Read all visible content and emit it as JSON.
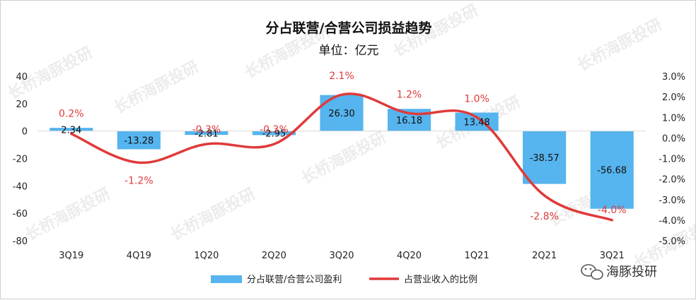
{
  "chart_data": {
    "type": "bar",
    "title": "分占联营/合营公司损益趋势",
    "subtitle": "单位：亿元",
    "categories": [
      "3Q19",
      "4Q19",
      "1Q20",
      "2Q20",
      "3Q20",
      "4Q20",
      "1Q21",
      "2Q21",
      "3Q21"
    ],
    "series": [
      {
        "name": "分占联营/合营公司盈利",
        "type": "bar",
        "axis": "left",
        "values": [
          2.34,
          -13.28,
          -2.81,
          -2.95,
          26.3,
          16.18,
          13.48,
          -38.57,
          -56.68
        ],
        "labels": [
          "2.34",
          "-13.28",
          "-2.81",
          "-2.95",
          "26.30",
          "16.18",
          "13.48",
          "-38.57",
          "-56.68"
        ],
        "color": "#56b4ee"
      },
      {
        "name": "占营业收入的比例",
        "type": "line",
        "axis": "right",
        "values": [
          0.2,
          -1.2,
          -0.3,
          -0.3,
          2.1,
          1.2,
          1.0,
          -2.8,
          -4.0
        ],
        "labels": [
          "0.2%",
          "-1.2%",
          "-0.3%",
          "-0.3%",
          "2.1%",
          "1.2%",
          "1.0%",
          "-2.8%",
          "-4.0%"
        ],
        "color": "#e03a3a"
      }
    ],
    "ylim_left": [
      -80,
      40
    ],
    "yticks_left": [
      "40",
      "20",
      "0",
      "-20",
      "-40",
      "-60",
      "-80"
    ],
    "ylim_right": [
      -5.0,
      3.0
    ],
    "yticks_right": [
      "3.0%",
      "2.0%",
      "1.0%",
      "0.0%",
      "-1.0%",
      "-2.0%",
      "-3.0%",
      "-4.0%",
      "-5.0%"
    ],
    "legend_position": "bottom",
    "grid": false
  },
  "watermark": "长桥海豚投研",
  "brand": {
    "icon": "wechat-icon",
    "text": "海豚投研"
  }
}
